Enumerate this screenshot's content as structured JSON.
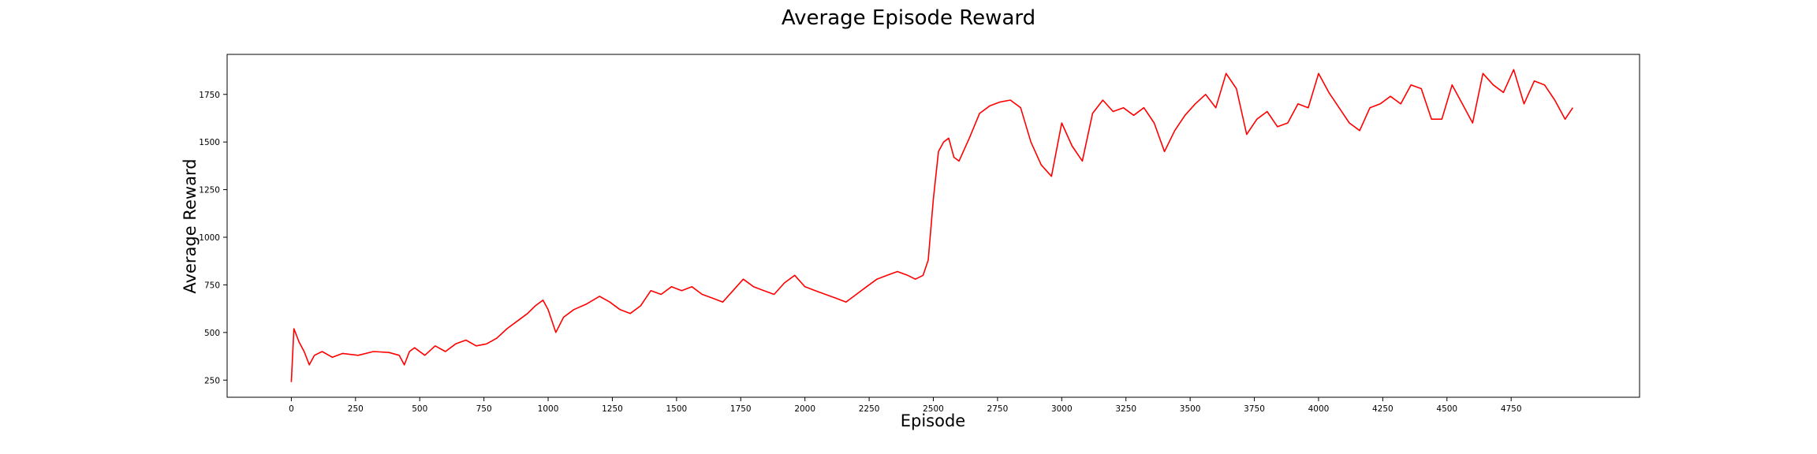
{
  "chart_data": {
    "type": "line",
    "title": "Average Episode Reward",
    "xlabel": "Episode",
    "ylabel": "Average Reward",
    "xlim": [
      -250,
      5250
    ],
    "ylim": [
      160,
      1960
    ],
    "xticks": [
      0,
      250,
      500,
      750,
      1000,
      1250,
      1500,
      1750,
      2000,
      2250,
      2500,
      2750,
      3000,
      3250,
      3500,
      3750,
      4000,
      4250,
      4500,
      4750
    ],
    "yticks": [
      250,
      500,
      750,
      1000,
      1250,
      1500,
      1750
    ],
    "grid": false,
    "legend": "none",
    "series": [
      {
        "color": "#ff0000",
        "x": [
          0,
          10,
          30,
          50,
          70,
          90,
          120,
          160,
          200,
          260,
          320,
          380,
          420,
          440,
          460,
          480,
          520,
          560,
          600,
          640,
          680,
          720,
          760,
          800,
          840,
          880,
          920,
          950,
          980,
          1000,
          1030,
          1060,
          1100,
          1150,
          1200,
          1240,
          1280,
          1320,
          1360,
          1400,
          1440,
          1480,
          1520,
          1560,
          1600,
          1640,
          1680,
          1720,
          1760,
          1800,
          1840,
          1880,
          1920,
          1960,
          2000,
          2040,
          2080,
          2120,
          2160,
          2200,
          2240,
          2280,
          2320,
          2360,
          2400,
          2430,
          2460,
          2480,
          2500,
          2520,
          2540,
          2560,
          2580,
          2600,
          2640,
          2680,
          2720,
          2760,
          2800,
          2840,
          2880,
          2920,
          2960,
          3000,
          3040,
          3080,
          3120,
          3160,
          3200,
          3240,
          3280,
          3320,
          3360,
          3400,
          3440,
          3480,
          3520,
          3560,
          3600,
          3640,
          3680,
          3720,
          3760,
          3800,
          3840,
          3880,
          3920,
          3960,
          4000,
          4040,
          4080,
          4120,
          4160,
          4200,
          4240,
          4280,
          4320,
          4360,
          4400,
          4440,
          4480,
          4520,
          4560,
          4600,
          4640,
          4680,
          4720,
          4760,
          4800,
          4840,
          4880,
          4920,
          4960,
          4990
        ],
        "y": [
          240,
          520,
          450,
          400,
          330,
          380,
          400,
          370,
          390,
          380,
          400,
          395,
          380,
          330,
          400,
          420,
          380,
          430,
          400,
          440,
          460,
          430,
          440,
          470,
          520,
          560,
          600,
          640,
          670,
          620,
          500,
          580,
          620,
          650,
          690,
          660,
          620,
          600,
          640,
          720,
          700,
          740,
          720,
          740,
          700,
          680,
          660,
          720,
          780,
          740,
          720,
          700,
          760,
          800,
          740,
          720,
          700,
          680,
          660,
          700,
          740,
          780,
          800,
          820,
          800,
          780,
          800,
          880,
          1200,
          1450,
          1500,
          1520,
          1420,
          1400,
          1520,
          1650,
          1690,
          1710,
          1720,
          1680,
          1500,
          1380,
          1320,
          1600,
          1480,
          1400,
          1650,
          1720,
          1660,
          1680,
          1640,
          1680,
          1600,
          1450,
          1560,
          1640,
          1700,
          1750,
          1680,
          1860,
          1780,
          1540,
          1620,
          1660,
          1580,
          1600,
          1700,
          1680,
          1860,
          1760,
          1680,
          1600,
          1560,
          1680,
          1700,
          1740,
          1700,
          1800,
          1780,
          1620,
          1620,
          1800,
          1700,
          1600,
          1860,
          1800,
          1760,
          1880,
          1700,
          1820,
          1800,
          1720,
          1620,
          1680
        ]
      }
    ]
  }
}
